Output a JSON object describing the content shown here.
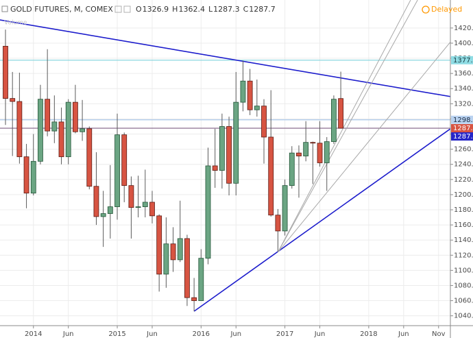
{
  "chart_data": {
    "type": "candlestick",
    "title": "GOLD FUTURES, M, COMEX",
    "ohlc": [
      {
        "label": "O",
        "value": 1326.9
      },
      {
        "label": "H",
        "value": 1362.4
      },
      {
        "label": "L",
        "value": 1287.3
      },
      {
        "label": "C",
        "value": 1287.7
      }
    ],
    "status": "Delayed",
    "indicator": "Volume",
    "x": [
      "2013-09",
      "2013-10",
      "2013-11",
      "2013-12",
      "2014-01",
      "2014-02",
      "2014-03",
      "2014-04",
      "2014-05",
      "2014-06",
      "2014-07",
      "2014-08",
      "2014-09",
      "2014-10",
      "2014-11",
      "2014-12",
      "2015-01",
      "2015-02",
      "2015-03",
      "2015-04",
      "2015-05",
      "2015-06",
      "2015-07",
      "2015-08",
      "2015-09",
      "2015-10",
      "2015-11",
      "2015-12",
      "2016-01",
      "2016-02",
      "2016-03",
      "2016-04",
      "2016-05",
      "2016-06",
      "2016-07",
      "2016-08",
      "2016-09",
      "2016-10",
      "2016-11",
      "2016-12",
      "2017-01",
      "2017-02",
      "2017-03",
      "2017-04",
      "2017-05",
      "2017-06",
      "2017-07",
      "2017-08",
      "2017-09"
    ],
    "open": [
      1396,
      1327,
      1323,
      1250,
      1202,
      1244,
      1326,
      1284,
      1296,
      1250,
      1322,
      1283,
      1287,
      1211,
      1171,
      1175,
      1184,
      1279,
      1212,
      1183,
      1184,
      1190,
      1172,
      1095,
      1135,
      1114,
      1142,
      1064,
      1060,
      1116,
      1238,
      1232,
      1290,
      1215,
      1322,
      1350,
      1312,
      1317,
      1276,
      1173,
      1152,
      1212,
      1255,
      1251,
      1269,
      1268,
      1242,
      1270,
      1326.9
    ],
    "high": [
      1418,
      1362,
      1361,
      1267,
      1280,
      1345,
      1392,
      1331,
      1315,
      1326,
      1345,
      1325,
      1290,
      1256,
      1205,
      1239,
      1307,
      1282,
      1224,
      1225,
      1233,
      1205,
      1174,
      1170,
      1157,
      1192,
      1147,
      1090,
      1128,
      1262,
      1287,
      1307,
      1303,
      1362,
      1377,
      1366,
      1352,
      1326,
      1338,
      1181,
      1220,
      1264,
      1265,
      1297,
      1270,
      1297,
      1276,
      1331,
      1362.4
    ],
    "low": [
      1292,
      1251,
      1241,
      1182,
      1199,
      1240,
      1277,
      1268,
      1240,
      1240,
      1281,
      1271,
      1207,
      1160,
      1131,
      1142,
      1167,
      1190,
      1142,
      1170,
      1170,
      1162,
      1072,
      1077,
      1098,
      1111,
      1053,
      1046,
      1061,
      1108,
      1209,
      1208,
      1199,
      1199,
      1310,
      1305,
      1303,
      1241,
      1171,
      1125,
      1146,
      1208,
      1196,
      1244,
      1214,
      1237,
      1205,
      1267,
      1287.3
    ],
    "close": [
      1327,
      1323,
      1250,
      1202,
      1244,
      1326,
      1284,
      1296,
      1250,
      1322,
      1283,
      1287,
      1211,
      1171,
      1175,
      1184,
      1279,
      1212,
      1183,
      1184,
      1190,
      1172,
      1095,
      1135,
      1114,
      1142,
      1064,
      1060,
      1116,
      1238,
      1232,
      1290,
      1215,
      1322,
      1350,
      1312,
      1317,
      1276,
      1173,
      1152,
      1212,
      1255,
      1251,
      1269,
      1268,
      1242,
      1270,
      1326,
      1287.7
    ],
    "up_color": "#6ba583",
    "up_border": "#225437",
    "down_color": "#d75442",
    "down_border": "#5b1a13",
    "wick_color": "#5a5a5a",
    "ylim": [
      1027,
      1457
    ],
    "yticks": [
      {
        "value": 1040,
        "label": "1040.0"
      },
      {
        "value": 1060,
        "label": "1060.0"
      },
      {
        "value": 1080,
        "label": "1080.0"
      },
      {
        "value": 1100,
        "label": "1100.0"
      },
      {
        "value": 1120,
        "label": "1120.0"
      },
      {
        "value": 1140,
        "label": "1140.0"
      },
      {
        "value": 1160,
        "label": "1160.0"
      },
      {
        "value": 1180,
        "label": "1180.0"
      },
      {
        "value": 1200,
        "label": "1200.0"
      },
      {
        "value": 1220,
        "label": "1220.0"
      },
      {
        "value": 1240,
        "label": "1240.0"
      },
      {
        "value": 1260,
        "label": "1260.0"
      },
      {
        "value": 1280,
        "label": "1280.0"
      },
      {
        "value": 1300,
        "label": "1300.0"
      },
      {
        "value": 1320,
        "label": "1320.0"
      },
      {
        "value": 1340,
        "label": "1340.0"
      },
      {
        "value": 1360,
        "label": "1360.0"
      },
      {
        "value": 1380,
        "label": "1380.0"
      },
      {
        "value": 1400,
        "label": "1400.0"
      },
      {
        "value": 1420,
        "label": "1420.0"
      }
    ],
    "xticks": [
      {
        "value": "2014-01",
        "label": "2014"
      },
      {
        "value": "2014-06",
        "label": "Jun"
      },
      {
        "value": "2015-01",
        "label": "2015"
      },
      {
        "value": "2015-06",
        "label": "Jun"
      },
      {
        "value": "2016-01",
        "label": "2016"
      },
      {
        "value": "2016-06",
        "label": "Jun"
      },
      {
        "value": "2017-01",
        "label": "2017"
      },
      {
        "value": "2017-06",
        "label": "Jun"
      },
      {
        "value": "2018-01",
        "label": "2018"
      },
      {
        "value": "2018-06",
        "label": "Jun"
      },
      {
        "value": "2018-11",
        "label": "Nov"
      }
    ],
    "grid": true,
    "hlines": [
      {
        "value": 1377.5,
        "color": "#7fd3dc",
        "label_bg": "#8fdce4",
        "label_fg": "#1a3a40"
      },
      {
        "value": 1298.8,
        "color": "#a9c6ea",
        "label_bg": "#b9d2f0",
        "label_fg": "#1a2a40"
      },
      {
        "value": 1287.7,
        "color": "#8a6d8f",
        "label_bg": "#d75442",
        "label_fg": "#ffffff"
      }
    ],
    "trendlines": [
      {
        "color": "#1c1ccc",
        "width": 1.6,
        "points": [
          {
            "x": "2013-08",
            "y": 1431
          },
          {
            "x": "2019-01",
            "y": 1329
          }
        ]
      },
      {
        "color": "#1c1ccc",
        "width": 1.6,
        "points": [
          {
            "x": "2015-12",
            "y": 1046
          },
          {
            "x": "2019-01",
            "y": 1289
          }
        ],
        "end_label": {
          "value": 1287,
          "label": "1287.0",
          "label_bg": "#2525c8",
          "label_fg": "#ffffff"
        }
      },
      {
        "color": "#a8a8a8",
        "width": 1,
        "points": [
          {
            "x": "2016-12",
            "y": 1124
          },
          {
            "x": "2018-07",
            "y": 1457
          }
        ]
      },
      {
        "color": "#a8a8a8",
        "width": 1,
        "points": [
          {
            "x": "2016-12",
            "y": 1124
          },
          {
            "x": "2018-08",
            "y": 1457
          }
        ]
      },
      {
        "color": "#a8a8a8",
        "width": 1,
        "points": [
          {
            "x": "2016-12",
            "y": 1124
          },
          {
            "x": "2019-01",
            "y": 1405
          }
        ]
      }
    ]
  }
}
